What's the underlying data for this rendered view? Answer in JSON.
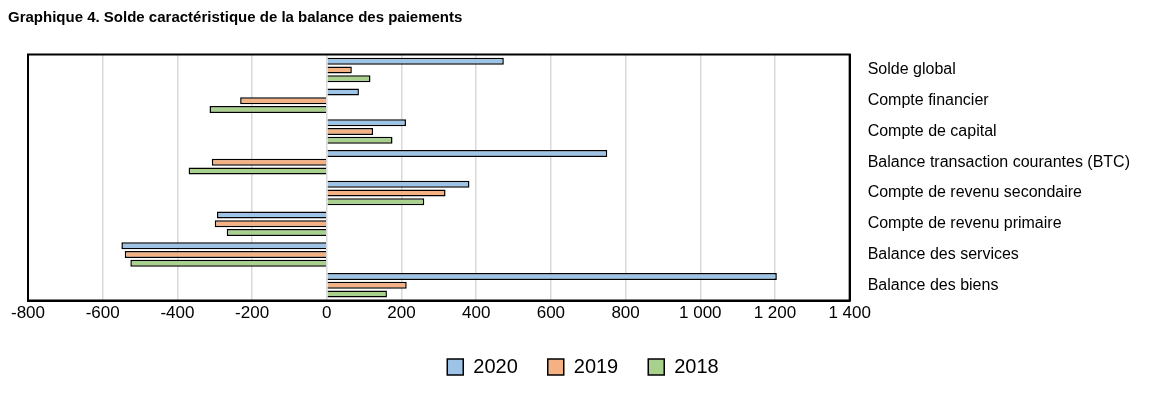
{
  "chart_data": {
    "type": "bar",
    "orientation": "horizontal",
    "title": "Graphique 4. Solde caractéristique de la balance des paiements",
    "categories": [
      "Solde global",
      "Compte financier",
      "Compte de capital",
      "Balance transaction courantes (BTC)",
      "Compte de revenu secondaire",
      "Compte de revenu primaire",
      "Balance des services",
      "Balance des biens"
    ],
    "series": [
      {
        "name": "2020",
        "color": "#9dc3e6",
        "values": [
          474,
          86,
          212,
          751,
          382,
          -294,
          -550,
          1205
        ]
      },
      {
        "name": "2019",
        "color": "#f4b183",
        "values": [
          67,
          -232,
          124,
          -308,
          318,
          -300,
          -541,
          214
        ]
      },
      {
        "name": "2018",
        "color": "#a9d18e",
        "values": [
          117,
          -314,
          176,
          -370,
          261,
          -268,
          -526,
          161
        ]
      }
    ],
    "xlim": [
      -800,
      1400
    ],
    "xticks": [
      -800,
      -600,
      -400,
      -200,
      0,
      200,
      400,
      600,
      800,
      {
        "value": 1000,
        "label": "1 000"
      },
      {
        "value": 1200,
        "label": "1 200"
      },
      {
        "value": 1400,
        "label": "1 400"
      }
    ],
    "grid": "x",
    "legend": "bottom"
  }
}
